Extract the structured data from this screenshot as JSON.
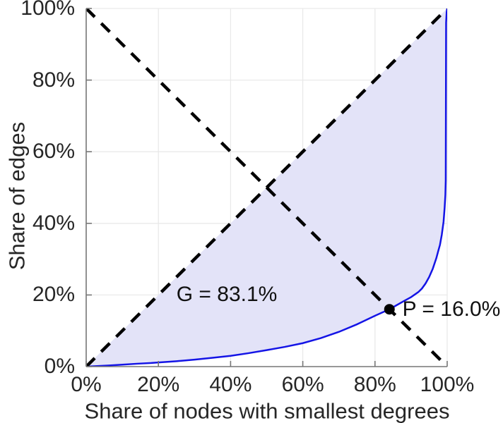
{
  "figure": {
    "background": "#ffffff"
  },
  "chart_data": {
    "type": "line",
    "title": "",
    "xlabel": "Share of nodes with smallest degrees",
    "ylabel": "Share of edges",
    "xlim": [
      0,
      100
    ],
    "ylim": [
      0,
      100
    ],
    "grid": true,
    "legend": "none",
    "x_ticks": {
      "values": [
        0,
        20,
        40,
        60,
        80,
        100
      ],
      "labels": [
        "0%",
        "20%",
        "40%",
        "60%",
        "80%",
        "100%"
      ]
    },
    "y_ticks": {
      "values": [
        0,
        20,
        40,
        60,
        80,
        100
      ],
      "labels": [
        "0%",
        "20%",
        "40%",
        "60%",
        "80%",
        "100%"
      ]
    },
    "series": [
      {
        "name": "lorenz-curve",
        "style": "solid",
        "color": "#1414e6",
        "width": 2.5,
        "points": [
          [
            0,
            0
          ],
          [
            2,
            0.1
          ],
          [
            4,
            0.2
          ],
          [
            6,
            0.3
          ],
          [
            8,
            0.42
          ],
          [
            10,
            0.55
          ],
          [
            14,
            0.8
          ],
          [
            18,
            1.0
          ],
          [
            20,
            1.15
          ],
          [
            25,
            1.5
          ],
          [
            30,
            1.95
          ],
          [
            35,
            2.45
          ],
          [
            40,
            3.0
          ],
          [
            45,
            3.75
          ],
          [
            50,
            4.6
          ],
          [
            55,
            5.5
          ],
          [
            60,
            6.55
          ],
          [
            65,
            7.95
          ],
          [
            70,
            9.7
          ],
          [
            75,
            11.8
          ],
          [
            80,
            14.2
          ],
          [
            82,
            15.1
          ],
          [
            84,
            16.0
          ],
          [
            86,
            17.15
          ],
          [
            88,
            18.3
          ],
          [
            90,
            19.4
          ],
          [
            92,
            20.8
          ],
          [
            93,
            21.8
          ],
          [
            94,
            23.2
          ],
          [
            95,
            25.0
          ],
          [
            96,
            27.3
          ],
          [
            97,
            30.3
          ],
          [
            97.5,
            32.2
          ],
          [
            98,
            34.0
          ],
          [
            98.5,
            36.8
          ],
          [
            99,
            40.5
          ],
          [
            99.3,
            44.5
          ],
          [
            99.5,
            48.0
          ],
          [
            99.6,
            52.0
          ],
          [
            99.65,
            75.0
          ],
          [
            99.7,
            96.0
          ],
          [
            99.85,
            99.0
          ],
          [
            100,
            100
          ]
        ]
      },
      {
        "name": "equality-diagonal",
        "style": "dashed",
        "color": "#000000",
        "width": 4.5,
        "dash": "17 13",
        "points": [
          [
            0,
            0
          ],
          [
            100,
            100
          ]
        ]
      },
      {
        "name": "anti-diagonal",
        "style": "dashed",
        "color": "#000000",
        "width": 4.5,
        "dash": "17 13",
        "points": [
          [
            0,
            100
          ],
          [
            100,
            0
          ]
        ]
      }
    ],
    "fill_between": {
      "name": "gini-area",
      "upper": "equality-diagonal",
      "lower": "lorenz-curve",
      "color": "#e3e3f8"
    },
    "marker": {
      "name": "intersection-point",
      "x": 84,
      "y": 16,
      "radius": 7.5,
      "color": "#000000"
    },
    "annotations": [
      {
        "name": "gini-label",
        "text": "G = 83.1%",
        "x": 25,
        "y": 20
      },
      {
        "name": "p-label",
        "text": "P = 16.0%",
        "x": 87.6,
        "y": 16
      }
    ],
    "colors": {
      "axis": "#777777",
      "grid": "#e9e9e9",
      "tick_text": "#262626",
      "annotation_text": "#111111"
    }
  }
}
